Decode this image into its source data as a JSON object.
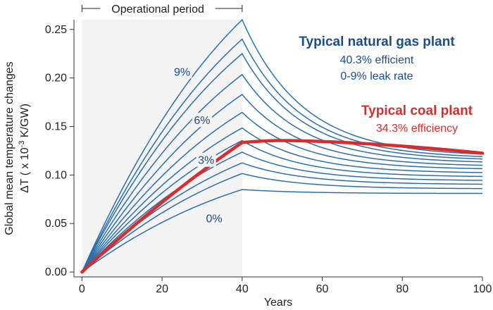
{
  "chart_data": {
    "type": "line",
    "xlabel": "Years",
    "ylabel_line1": "Global mean temperature changes",
    "ylabel_line2": {
      "prefix": "ΔT ( x 10",
      "sup": "-3",
      "suffix": " K/GW)"
    },
    "xlim": [
      -2,
      100
    ],
    "ylim": [
      -0.005,
      0.26
    ],
    "xticks": [
      0,
      20,
      40,
      60,
      80,
      100
    ],
    "yticks": [
      0.0,
      0.05,
      0.1,
      0.15,
      0.2,
      0.25
    ],
    "grid": false,
    "shaded_region": {
      "x": [
        0,
        40
      ],
      "label": "Operational period",
      "color": "#f3f3f3"
    },
    "gas": {
      "title": "Typical natural gas plant",
      "lines": [
        "40.3% efficient",
        "0-9% leak rate"
      ],
      "color": "#1a4e8a",
      "line_color": "#2a6fad",
      "leak_labels": [
        {
          "text": "9%",
          "x": 25,
          "y": 0.206
        },
        {
          "text": "6%",
          "x": 30,
          "y": 0.156
        },
        {
          "text": "3%",
          "x": 31,
          "y": 0.115
        },
        {
          "text": "0%",
          "x": 33,
          "y": 0.055
        }
      ],
      "series": [
        {
          "peak": 0.085,
          "end": 0.081
        },
        {
          "peak": 0.1015,
          "end": 0.086
        },
        {
          "peak": 0.1125,
          "end": 0.0905
        },
        {
          "peak": 0.1235,
          "end": 0.0945
        },
        {
          "peak": 0.1355,
          "end": 0.0985
        },
        {
          "peak": 0.1485,
          "end": 0.1025
        },
        {
          "peak": 0.1645,
          "end": 0.1065
        },
        {
          "peak": 0.183,
          "end": 0.11
        },
        {
          "peak": 0.2035,
          "end": 0.1135
        },
        {
          "peak": 0.225,
          "end": 0.1165
        },
        {
          "peak": 0.24,
          "end": 0.119
        },
        {
          "peak": 0.26,
          "end": 0.1215
        }
      ]
    },
    "coal": {
      "title": "Typical coal plant",
      "lines": [
        "34.3% efficiency"
      ],
      "color": "#d92d2d",
      "peak": 0.1335,
      "max": 0.1355,
      "end": 0.1225
    }
  }
}
